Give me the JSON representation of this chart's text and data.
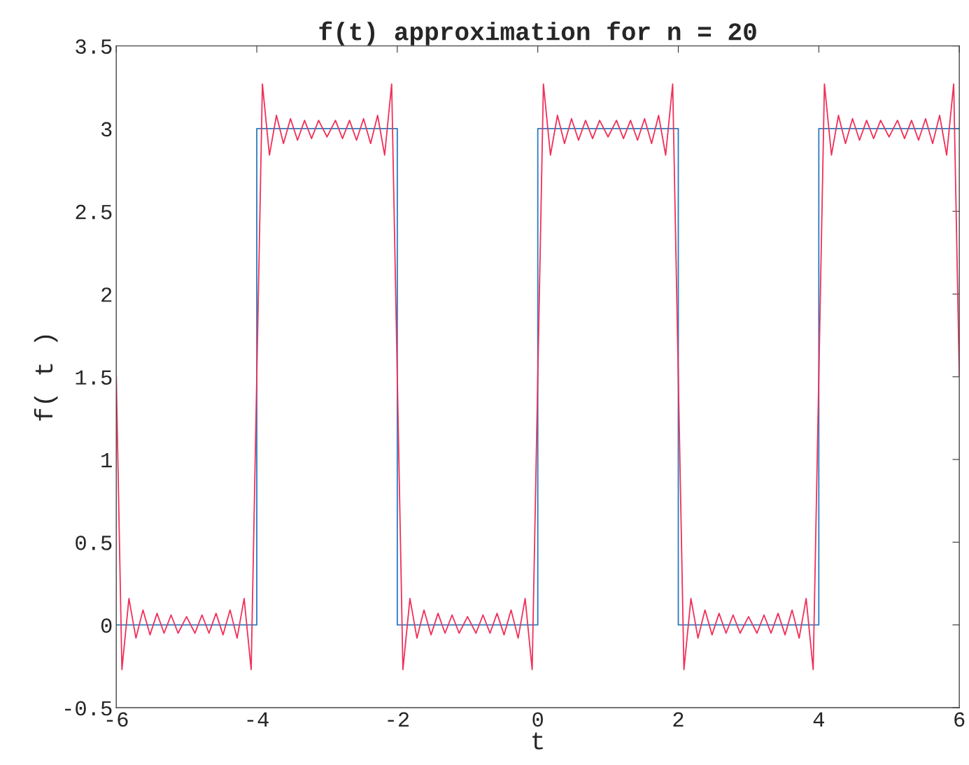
{
  "chart_data": {
    "type": "line",
    "title": "f(t) approximation for n = 20",
    "xlabel": "t",
    "ylabel": "f( t )",
    "xlim": [
      -6,
      6
    ],
    "xticks": [
      -6,
      -4,
      -2,
      0,
      2,
      4,
      6
    ],
    "ylim": [
      -0.5,
      3.5
    ],
    "yticks": [
      -0.5,
      0,
      0.5,
      1,
      1.5,
      2,
      2.5,
      3,
      3.5
    ],
    "grid": false,
    "marker": "none",
    "line_style": "solid",
    "series": [
      {
        "color": "#2b7bc0",
        "x": [
          -6,
          -4,
          -4,
          -2,
          -2,
          0,
          0,
          2,
          2,
          4,
          4,
          6
        ],
        "values": [
          0,
          0,
          3,
          3,
          0,
          0,
          3,
          3,
          0,
          0,
          3,
          3
        ]
      },
      {
        "color": "#f0305a",
        "x": [
          -6,
          -5.92,
          -5.82,
          -5.72,
          -5.62,
          -5.52,
          -5.42,
          -5.32,
          -5.22,
          -5.12,
          -5,
          -4.88,
          -4.78,
          -4.68,
          -4.58,
          -4.48,
          -4.38,
          -4.28,
          -4.18,
          -4.08,
          -4,
          -3.92,
          -3.82,
          -3.72,
          -3.62,
          -3.52,
          -3.42,
          -3.32,
          -3.22,
          -3.12,
          -3,
          -2.88,
          -2.78,
          -2.68,
          -2.58,
          -2.48,
          -2.38,
          -2.28,
          -2.18,
          -2.08,
          -2,
          -1.92,
          -1.82,
          -1.72,
          -1.62,
          -1.52,
          -1.42,
          -1.32,
          -1.22,
          -1.12,
          -1,
          -0.88,
          -0.78,
          -0.68,
          -0.58,
          -0.48,
          -0.38,
          -0.28,
          -0.18,
          -0.08,
          0,
          0.08,
          0.18,
          0.28,
          0.38,
          0.48,
          0.58,
          0.68,
          0.78,
          0.88,
          1,
          1.12,
          1.22,
          1.32,
          1.42,
          1.52,
          1.62,
          1.72,
          1.82,
          1.92,
          2,
          2.08,
          2.18,
          2.28,
          2.38,
          2.48,
          2.58,
          2.68,
          2.78,
          2.88,
          3,
          3.12,
          3.22,
          3.32,
          3.42,
          3.52,
          3.62,
          3.72,
          3.82,
          3.92,
          4,
          4.08,
          4.18,
          4.28,
          4.38,
          4.48,
          4.58,
          4.68,
          4.78,
          4.88,
          5,
          5.12,
          5.22,
          5.32,
          5.42,
          5.52,
          5.62,
          5.72,
          5.82,
          5.92,
          6
        ],
        "values": [
          1.5,
          -0.27,
          0.16,
          -0.08,
          0.09,
          -0.06,
          0.07,
          -0.05,
          0.06,
          -0.05,
          0.05,
          -0.05,
          0.06,
          -0.05,
          0.07,
          -0.06,
          0.09,
          -0.08,
          0.16,
          -0.27,
          1.5,
          3.27,
          2.84,
          3.08,
          2.91,
          3.06,
          2.93,
          3.05,
          2.94,
          3.05,
          2.95,
          3.05,
          2.94,
          3.05,
          2.93,
          3.06,
          2.91,
          3.08,
          2.84,
          3.27,
          1.5,
          -0.27,
          0.16,
          -0.08,
          0.09,
          -0.06,
          0.07,
          -0.05,
          0.06,
          -0.05,
          0.05,
          -0.05,
          0.06,
          -0.05,
          0.07,
          -0.06,
          0.09,
          -0.08,
          0.16,
          -0.27,
          1.5,
          3.27,
          2.84,
          3.08,
          2.91,
          3.06,
          2.93,
          3.05,
          2.94,
          3.05,
          2.95,
          3.05,
          2.94,
          3.05,
          2.93,
          3.06,
          2.91,
          3.08,
          2.84,
          3.27,
          1.5,
          -0.27,
          0.16,
          -0.08,
          0.09,
          -0.06,
          0.07,
          -0.05,
          0.06,
          -0.05,
          0.05,
          -0.05,
          0.06,
          -0.05,
          0.07,
          -0.06,
          0.09,
          -0.08,
          0.16,
          -0.27,
          1.5,
          3.27,
          2.84,
          3.08,
          2.91,
          3.06,
          2.93,
          3.05,
          2.94,
          3.05,
          2.95,
          3.05,
          2.94,
          3.05,
          2.93,
          3.06,
          2.91,
          3.08,
          2.84,
          3.27,
          1.5
        ]
      }
    ]
  }
}
